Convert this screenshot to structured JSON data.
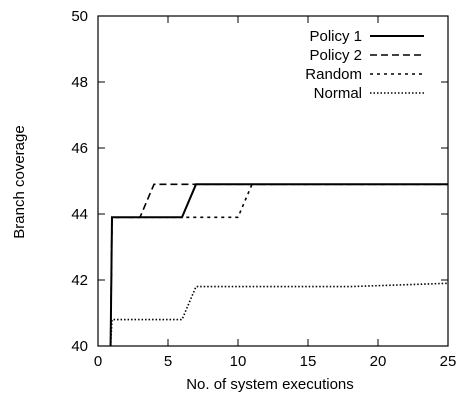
{
  "chart_data": {
    "type": "line",
    "title": "",
    "xlabel": "No. of system executions",
    "ylabel": "Branch coverage",
    "xlim": [
      0,
      25
    ],
    "ylim": [
      40,
      50
    ],
    "xticks": [
      0,
      5,
      10,
      15,
      20,
      25
    ],
    "yticks": [
      40,
      42,
      44,
      46,
      48,
      50
    ],
    "grid": false,
    "legend_position": "top-right",
    "series": [
      {
        "name": "Policy 1",
        "style": "solid",
        "color": "#000000",
        "x": [
          0.9,
          1.0,
          6.0,
          7.0,
          25.0
        ],
        "y": [
          40.0,
          43.9,
          43.9,
          44.9,
          44.9
        ]
      },
      {
        "name": "Policy 2",
        "style": "dashed",
        "color": "#000000",
        "x": [
          0.9,
          1.0,
          3.0,
          4.0,
          25.0
        ],
        "y": [
          40.0,
          43.9,
          43.9,
          44.9,
          44.9
        ]
      },
      {
        "name": "Random",
        "style": "dotted",
        "color": "#000000",
        "x": [
          0.9,
          1.0,
          10.0,
          11.0,
          25.0
        ],
        "y": [
          40.0,
          43.9,
          43.9,
          44.9,
          44.9
        ]
      },
      {
        "name": "Normal",
        "style": "fine-dotted",
        "color": "#000000",
        "x": [
          0.9,
          1.0,
          6.0,
          7.0,
          18.0,
          25.0
        ],
        "y": [
          40.0,
          40.8,
          40.8,
          41.8,
          41.8,
          41.9
        ]
      }
    ]
  }
}
